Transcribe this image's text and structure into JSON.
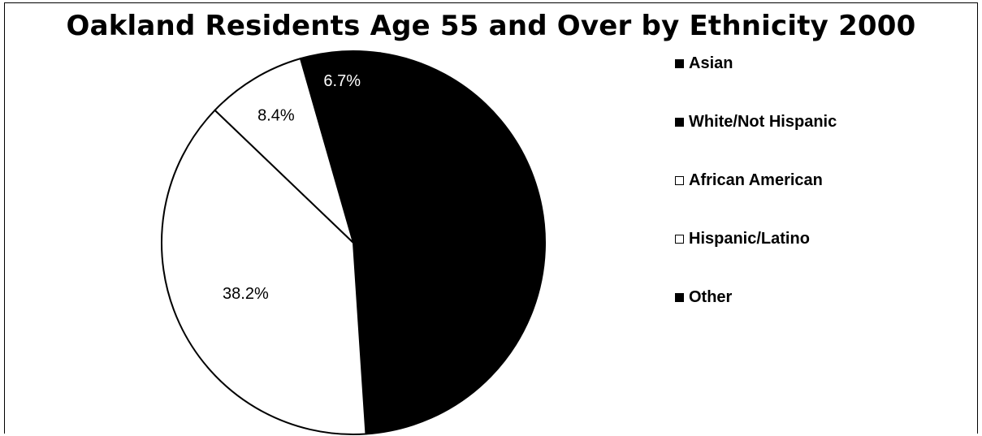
{
  "chart_data": {
    "type": "pie",
    "title": "Oakland Residents Age 55 and Over by Ethnicity 2000",
    "slices": [
      {
        "name": "Asian",
        "value": 6.7,
        "label": "6.7%",
        "color": "#000000",
        "label_color": "#ffffff"
      },
      {
        "name": "White/Not Hispanic",
        "value": 46.7,
        "label": "",
        "color": "#000000",
        "label_color": "#ffffff"
      },
      {
        "name": "African American",
        "value": 38.2,
        "label": "38.2%",
        "color": "#ffffff",
        "label_color": "#000000"
      },
      {
        "name": "Hispanic/Latino",
        "value": 8.4,
        "label": "8.4%",
        "color": "#ffffff",
        "label_color": "#000000"
      },
      {
        "name": "Other",
        "value": 0,
        "label": "",
        "color": "#000000",
        "label_color": "#ffffff"
      }
    ],
    "legend": {
      "position": "right",
      "items": [
        {
          "label": "Asian",
          "color": "#000000"
        },
        {
          "label": "White/Not Hispanic",
          "color": "#000000"
        },
        {
          "label": "African American",
          "color": "#ffffff"
        },
        {
          "label": "Hispanic/Latino",
          "color": "#ffffff"
        },
        {
          "label": "Other",
          "color": "#000000"
        }
      ]
    }
  }
}
